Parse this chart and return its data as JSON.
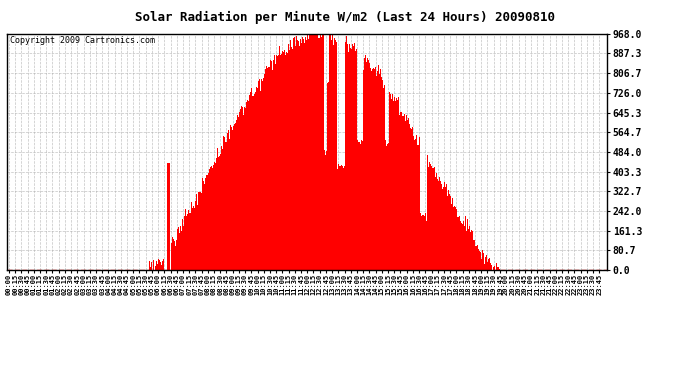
{
  "title": "Solar Radiation per Minute W/m2 (Last 24 Hours) 20090810",
  "copyright": "Copyright 2009 Cartronics.com",
  "bar_color": "#ff0000",
  "background_color": "#ffffff",
  "grid_color": "#aaaaaa",
  "ytick_labels": [
    "0.0",
    "80.7",
    "161.3",
    "242.0",
    "322.7",
    "403.3",
    "484.0",
    "564.7",
    "645.3",
    "726.0",
    "806.7",
    "887.3",
    "968.0"
  ],
  "ytick_values": [
    0.0,
    80.7,
    161.3,
    242.0,
    322.7,
    403.3,
    484.0,
    564.7,
    645.3,
    726.0,
    806.7,
    887.3,
    968.0
  ],
  "ylim": [
    0.0,
    968.0
  ],
  "minutes_per_day": 1440,
  "xtick_step": 15,
  "sunrise": 335,
  "sunset": 1185,
  "peak": 750,
  "peak_value": 968.0
}
